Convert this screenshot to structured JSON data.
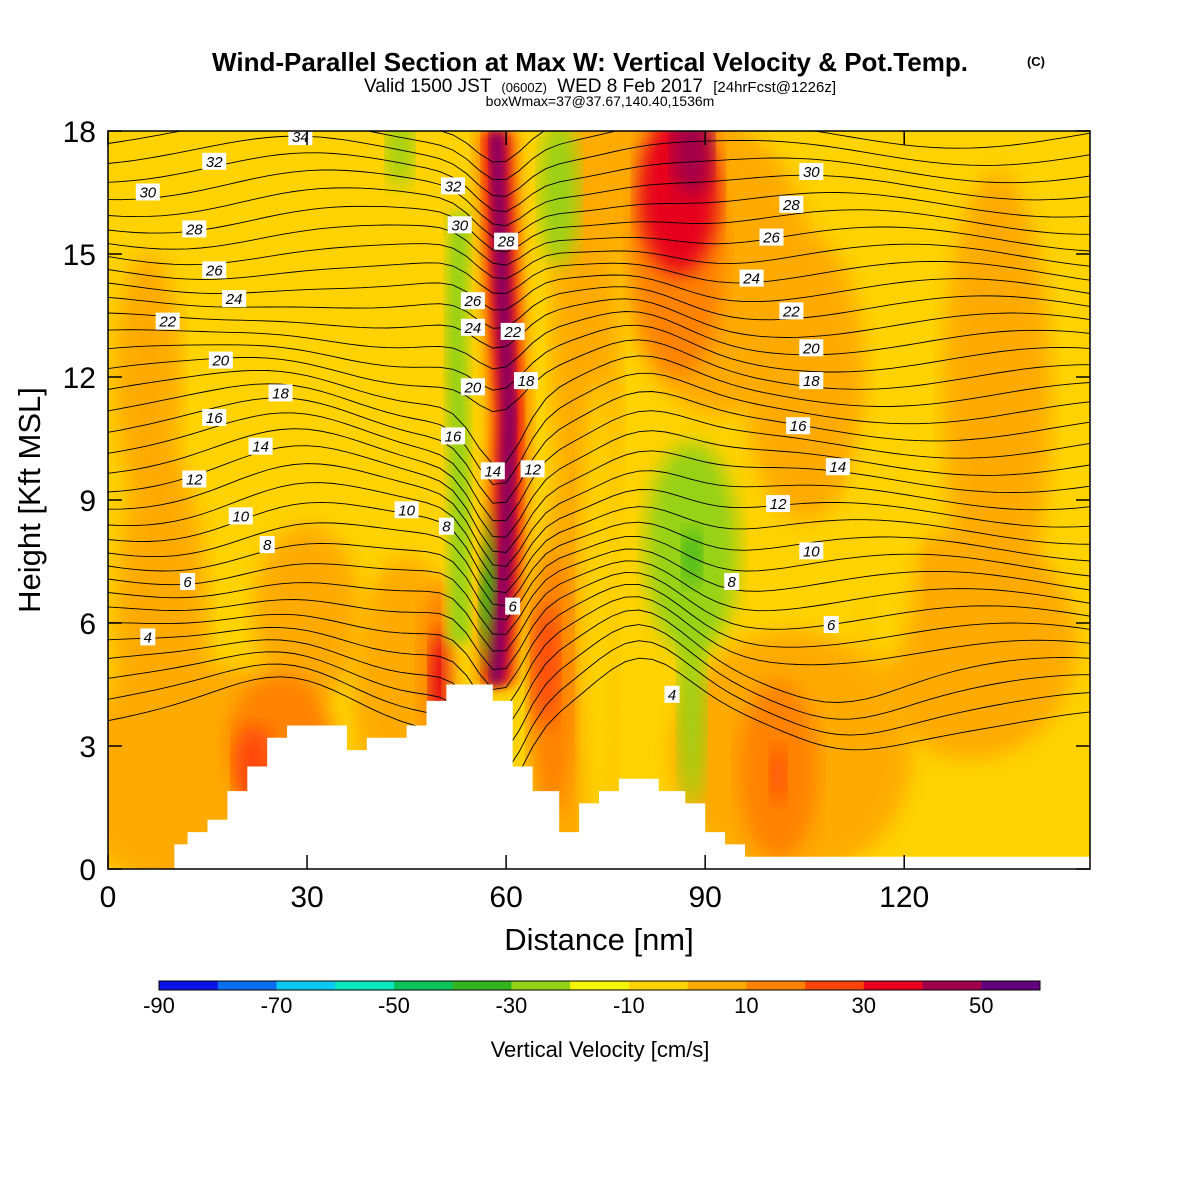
{
  "header": {
    "title": "Wind-Parallel Section at Max W: Vertical Velocity & Pot.Temp.",
    "copyright": "(C)",
    "valid_prefix": "Valid 1500 JST",
    "valid_utc": "(0600Z)",
    "valid_date": "WED 8 Feb 2017",
    "forecast": "[24hrFcst@1226z]",
    "box_info": "boxWmax=37@37.67,140.40,1536m"
  },
  "colors": {
    "palette": [
      "#0a14e6",
      "#0a6ef0",
      "#0ac8f0",
      "#0ae6be",
      "#0ac35a",
      "#32b41e",
      "#96d214",
      "#f5f500",
      "#ffd200",
      "#ffaa00",
      "#ff8200",
      "#ff460a",
      "#e6001e",
      "#a0004b",
      "#64007d"
    ],
    "contour": "#000000",
    "terrain": "#ffffff"
  },
  "chart_data": {
    "type": "heatmap",
    "xlabel": "Distance [nm]",
    "ylabel": "Height [Kft MSL]",
    "xlim": [
      0,
      148
    ],
    "ylim": [
      0,
      18
    ],
    "xticks": [
      "0",
      "30",
      "60",
      "90",
      "120"
    ],
    "yticks": [
      "0",
      "3",
      "6",
      "9",
      "12",
      "15",
      "18"
    ],
    "colorbar": {
      "label": "Vertical Velocity [cm/s]",
      "bounds": [
        -90,
        -80,
        -70,
        -60,
        -50,
        -40,
        -30,
        -20,
        -10,
        0,
        10,
        20,
        30,
        40,
        50,
        60
      ],
      "tick_labels": [
        "-90",
        "-70",
        "-50",
        "-30",
        "-10",
        "10",
        "30",
        "50"
      ]
    },
    "terrain_profile": {
      "x": [
        0,
        10,
        10,
        12,
        12,
        15,
        15,
        18,
        18,
        21,
        21,
        24,
        24,
        27,
        27,
        30,
        30,
        36,
        36,
        39,
        39,
        45,
        45,
        48,
        48,
        51,
        51,
        55,
        55,
        58,
        58,
        61,
        61,
        64,
        64,
        68,
        68,
        71,
        71,
        74,
        74,
        77,
        77,
        83,
        83,
        87,
        87,
        90,
        90,
        93,
        93,
        96,
        96,
        148
      ],
      "height_kft": [
        0,
        0,
        0.6,
        0.6,
        0.9,
        0.9,
        1.2,
        1.2,
        1.9,
        1.9,
        2.5,
        2.5,
        3.2,
        3.2,
        3.5,
        3.5,
        3.5,
        3.5,
        2.9,
        2.9,
        3.2,
        3.2,
        3.5,
        3.5,
        4.1,
        4.1,
        4.5,
        4.5,
        4.5,
        4.5,
        4.1,
        4.1,
        2.5,
        2.5,
        1.9,
        1.9,
        0.9,
        0.9,
        1.6,
        1.6,
        1.9,
        1.9,
        2.2,
        2.2,
        1.9,
        1.9,
        1.6,
        1.6,
        0.9,
        0.9,
        0.6,
        0.6,
        0.3,
        0.3
      ]
    },
    "wmax_cm_s": 37,
    "wmax_location": "37.67,140.40",
    "wmax_height_m": 1536,
    "theta_contours": [
      {
        "value": "4",
        "x": 85,
        "y": 4.25
      },
      {
        "value": "4",
        "x": 6,
        "y": 5.65
      },
      {
        "value": "6",
        "x": 61,
        "y": 6.4
      },
      {
        "value": "6",
        "x": 109,
        "y": 5.95
      },
      {
        "value": "6",
        "x": 12,
        "y": 7.0
      },
      {
        "value": "8",
        "x": 24,
        "y": 7.9
      },
      {
        "value": "8",
        "x": 51,
        "y": 8.35
      },
      {
        "value": "8",
        "x": 94,
        "y": 7.0
      },
      {
        "value": "10",
        "x": 20,
        "y": 8.6
      },
      {
        "value": "10",
        "x": 45,
        "y": 8.75
      },
      {
        "value": "10",
        "x": 106,
        "y": 7.75
      },
      {
        "value": "12",
        "x": 13,
        "y": 9.5
      },
      {
        "value": "12",
        "x": 64,
        "y": 9.75
      },
      {
        "value": "12",
        "x": 101,
        "y": 8.9
      },
      {
        "value": "14",
        "x": 23,
        "y": 10.3
      },
      {
        "value": "14",
        "x": 58,
        "y": 9.7
      },
      {
        "value": "14",
        "x": 110,
        "y": 9.8
      },
      {
        "value": "16",
        "x": 16,
        "y": 11.0
      },
      {
        "value": "16",
        "x": 52,
        "y": 10.55
      },
      {
        "value": "16",
        "x": 104,
        "y": 10.8
      },
      {
        "value": "18",
        "x": 26,
        "y": 11.6
      },
      {
        "value": "18",
        "x": 63,
        "y": 11.9
      },
      {
        "value": "18",
        "x": 106,
        "y": 11.9
      },
      {
        "value": "20",
        "x": 17,
        "y": 12.4
      },
      {
        "value": "20",
        "x": 55,
        "y": 11.75
      },
      {
        "value": "20",
        "x": 106,
        "y": 12.7
      },
      {
        "value": "22",
        "x": 9,
        "y": 13.35
      },
      {
        "value": "22",
        "x": 61,
        "y": 13.1
      },
      {
        "value": "22",
        "x": 103,
        "y": 13.6
      },
      {
        "value": "24",
        "x": 19,
        "y": 13.9
      },
      {
        "value": "24",
        "x": 55,
        "y": 13.2
      },
      {
        "value": "24",
        "x": 97,
        "y": 14.4
      },
      {
        "value": "26",
        "x": 16,
        "y": 14.6
      },
      {
        "value": "26",
        "x": 55,
        "y": 13.85
      },
      {
        "value": "26",
        "x": 100,
        "y": 15.4
      },
      {
        "value": "28",
        "x": 13,
        "y": 15.6
      },
      {
        "value": "28",
        "x": 60,
        "y": 15.3
      },
      {
        "value": "28",
        "x": 103,
        "y": 16.2
      },
      {
        "value": "30",
        "x": 6,
        "y": 16.5
      },
      {
        "value": "30",
        "x": 53,
        "y": 15.7
      },
      {
        "value": "30",
        "x": 106,
        "y": 17.0
      },
      {
        "value": "32",
        "x": 16,
        "y": 17.25
      },
      {
        "value": "32",
        "x": 52,
        "y": 16.65
      },
      {
        "value": "34",
        "x": 29,
        "y": 17.85
      }
    ]
  }
}
